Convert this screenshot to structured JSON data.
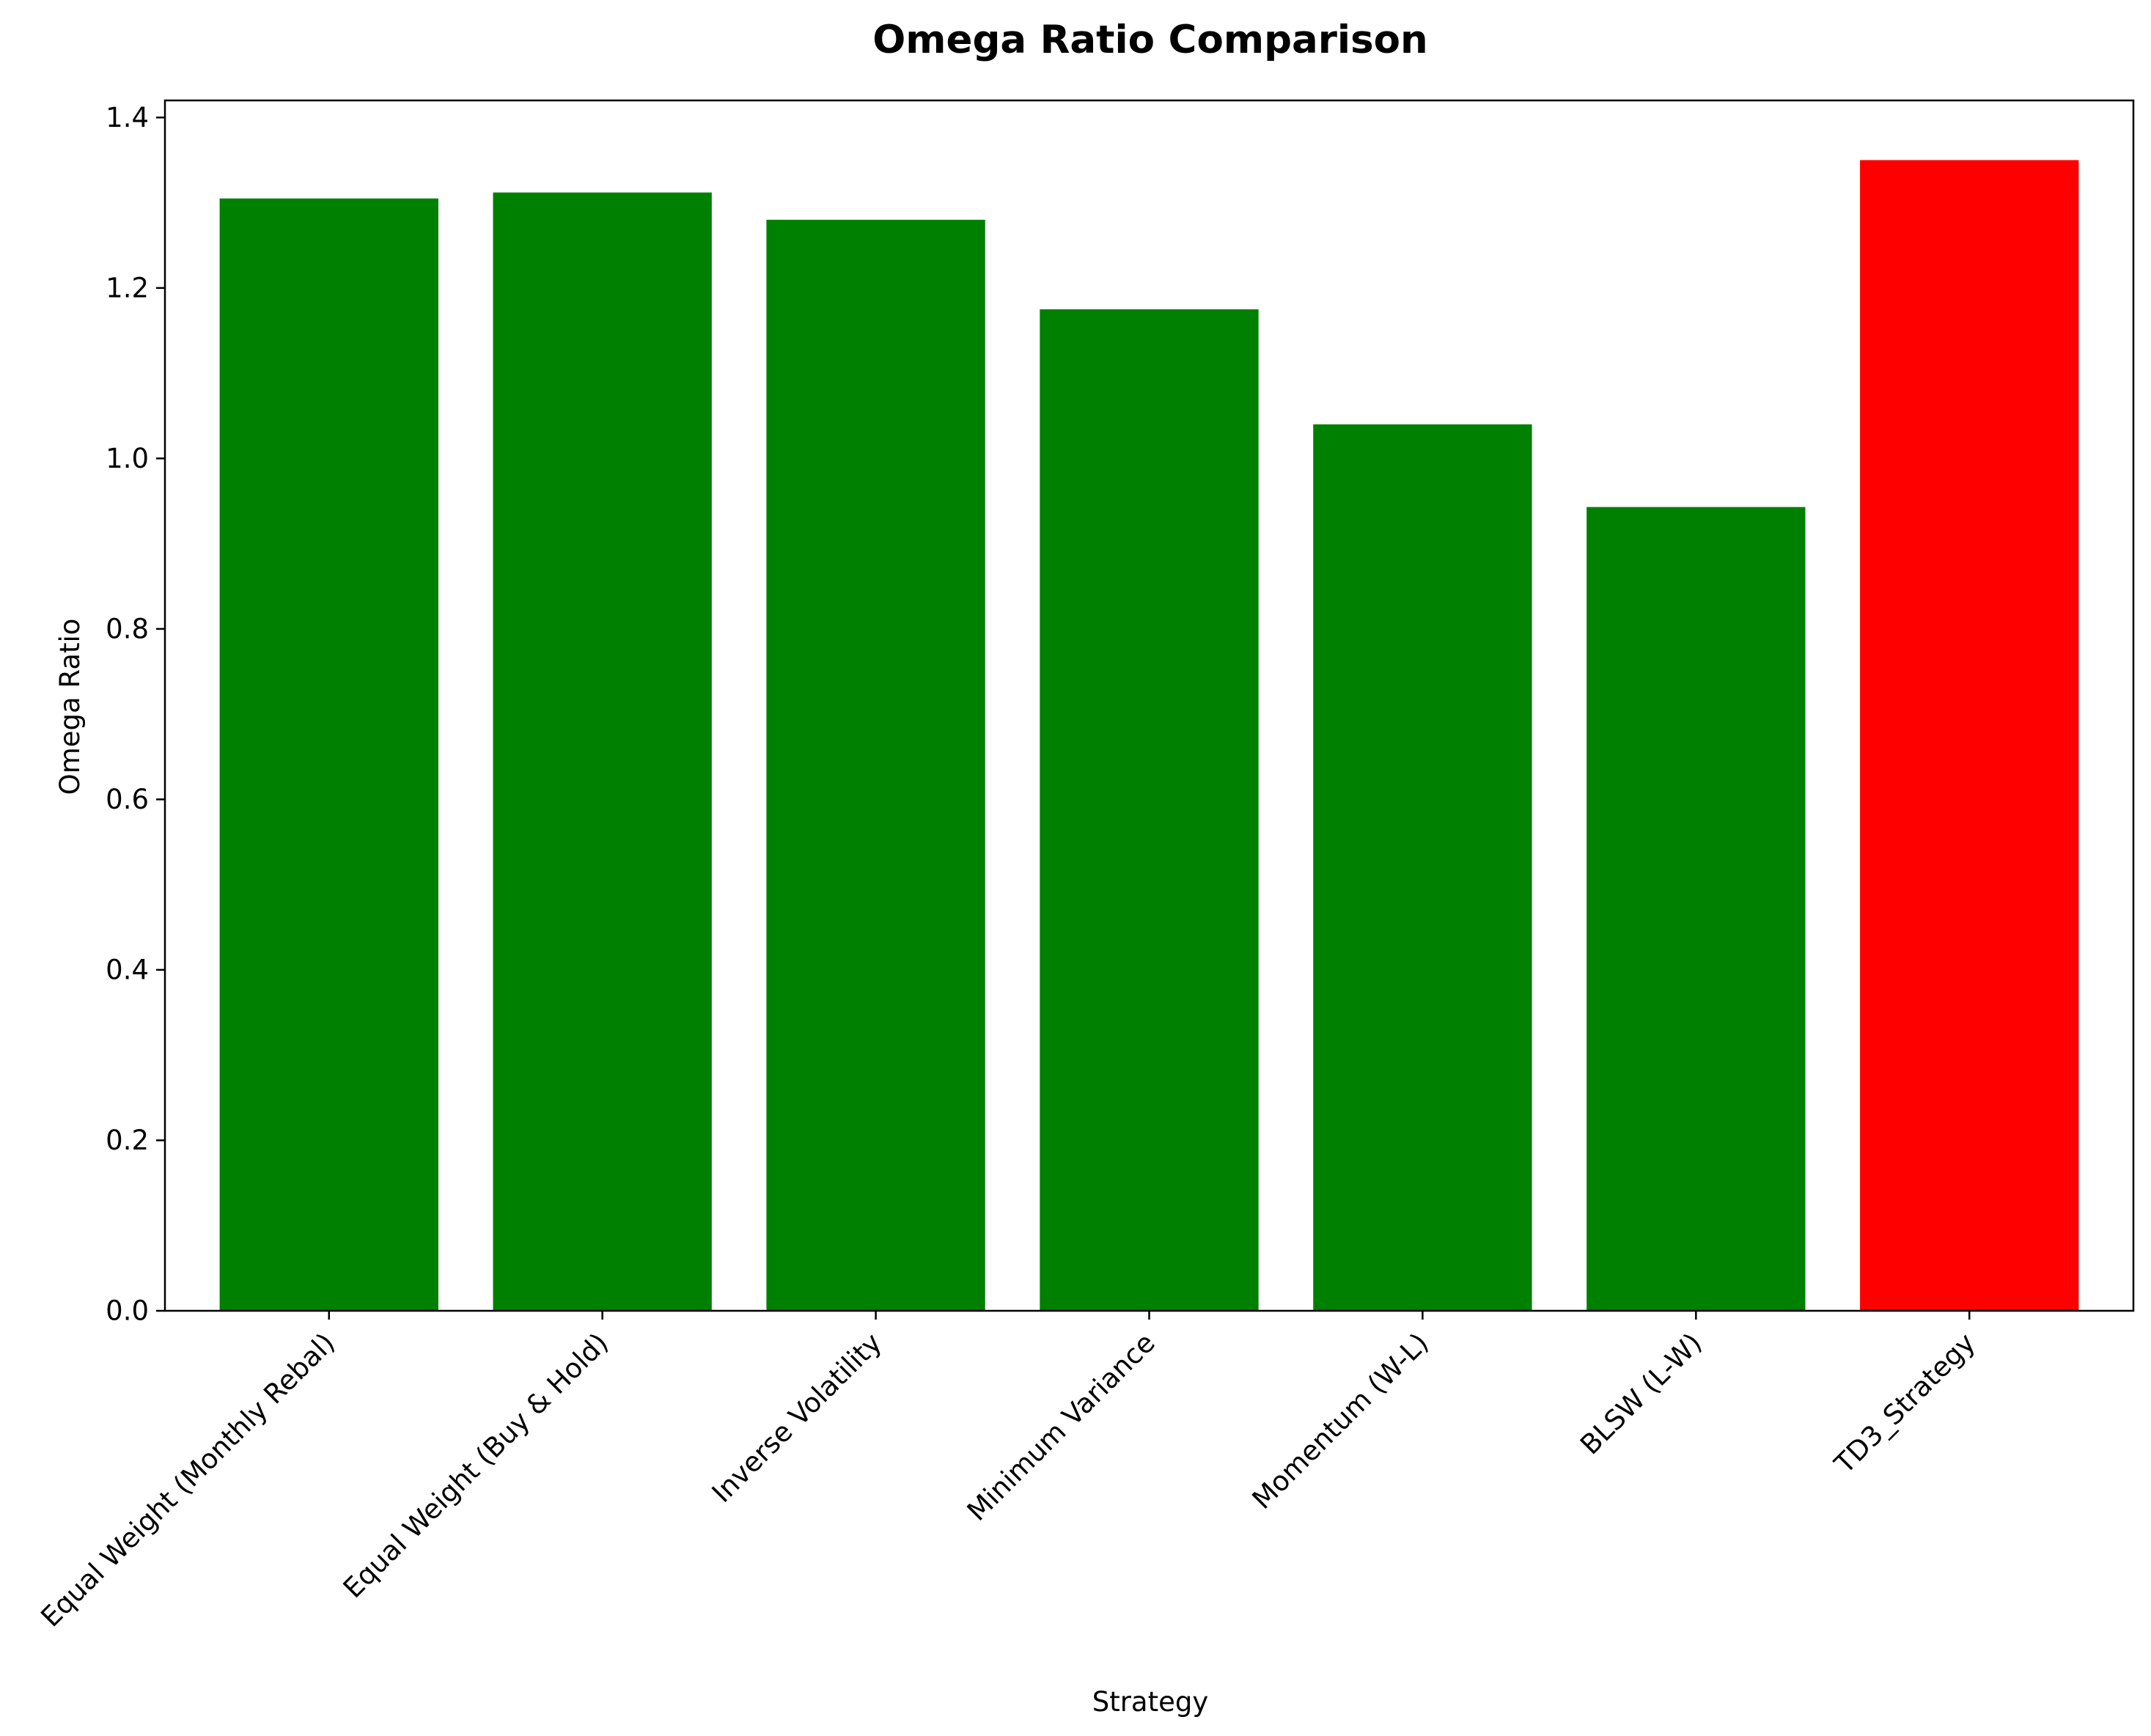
{
  "chart_data": {
    "type": "bar",
    "title": "Omega Ratio Comparison",
    "xlabel": "Strategy",
    "ylabel": "Omega Ratio",
    "categories": [
      "Equal Weight (Monthly Rebal)",
      "Equal Weight (Buy & Hold)",
      "Inverse Volatility",
      "Minimum Variance",
      "Momentum (W-L)",
      "BLSW (L-W)",
      "TD3_Strategy"
    ],
    "values": [
      1.305,
      1.312,
      1.28,
      1.175,
      1.04,
      0.943,
      1.35
    ],
    "colors": [
      "#008000",
      "#008000",
      "#008000",
      "#008000",
      "#008000",
      "#008000",
      "#ff0000"
    ],
    "ylim": [
      0,
      1.42
    ],
    "yticks": [
      0.0,
      0.2,
      0.4,
      0.6,
      0.8,
      1.0,
      1.2,
      1.4
    ],
    "ytick_labels": [
      "0.0",
      "0.2",
      "0.4",
      "0.6",
      "0.8",
      "1.0",
      "1.2",
      "1.4"
    ],
    "grid": false,
    "legend": "none",
    "xtick_rotation": 45
  }
}
